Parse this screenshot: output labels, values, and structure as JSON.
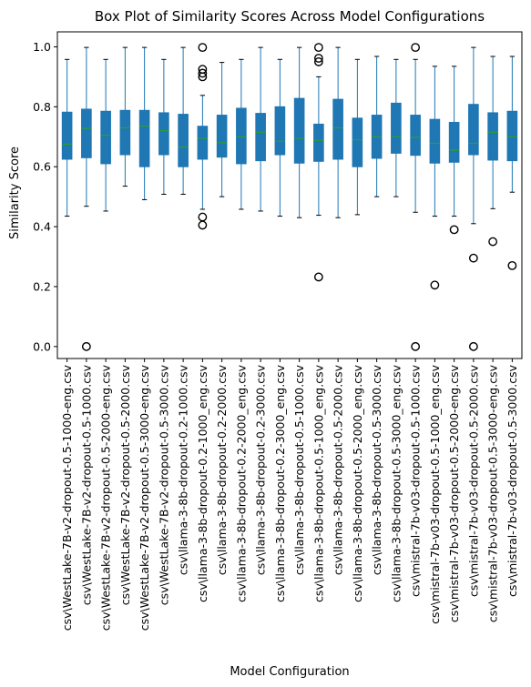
{
  "chart_data": {
    "type": "box",
    "title": "Box Plot of Similarity Scores Across Model Configurations",
    "xlabel": "Model Configuration",
    "ylabel": "Similarity Score",
    "ylim": [
      -0.04,
      1.05
    ],
    "yticks": [
      "0.0",
      "0.2",
      "0.4",
      "0.6",
      "0.8",
      "1.0"
    ],
    "ytick_values": [
      0.0,
      0.2,
      0.4,
      0.6,
      0.8,
      1.0
    ],
    "grid": false,
    "colors": {
      "box": "#1f77b4",
      "median": "#2ca02c",
      "outlier": "#000000"
    },
    "categories": [
      "csv\\WestLake-7B-v2-dropout-0.5-1000-eng.csv",
      "csv\\WestLake-7B-v2-dropout-0.5-1000.csv",
      "csv\\WestLake-7B-v2-dropout-0.5-2000-eng.csv",
      "csv\\WestLake-7B-v2-dropout-0.5-2000.csv",
      "csv\\WestLake-7B-v2-dropout-0.5-3000-eng.csv",
      "csv\\WestLake-7B-v2-dropout-0.5-3000.csv",
      "csv\\llama-3-8b-dropout-0.2-1000.csv",
      "csv\\llama-3-8b-dropout-0.2-1000_eng.csv",
      "csv\\llama-3-8b-dropout-0.2-2000.csv",
      "csv\\llama-3-8b-dropout-0.2-2000_eng.csv",
      "csv\\llama-3-8b-dropout-0.2-3000.csv",
      "csv\\llama-3-8b-dropout-0.2-3000_eng.csv",
      "csv\\llama-3-8b-dropout-0.5-1000.csv",
      "csv\\llama-3-8b-dropout-0.5-1000_eng.csv",
      "csv\\llama-3-8b-dropout-0.5-2000.csv",
      "csv\\llama-3-8b-dropout-0.5-2000_eng.csv",
      "csv\\llama-3-8b-dropout-0.5-3000.csv",
      "csv\\llama-3-8b-dropout-0.5-3000_eng.csv",
      "csv\\mistral-7b-v03-dropout-0.5-1000.csv",
      "csv\\mistral-7b-v03-dropout-0.5-1000_eng.csv",
      "csv\\mistral-7b-v03-dropout-0.5-2000-eng.csv",
      "csv\\mistral-7b-v03-dropout-0.5-2000.csv",
      "csv\\mistral-7b-v03-dropout-0.5-3000-eng.csv",
      "csv\\mistral-7b-v03-dropout-0.5-3000.csv"
    ],
    "boxes": [
      {
        "whislo": 0.435,
        "q1": 0.625,
        "med": 0.675,
        "q3": 0.782,
        "whishi": 0.958,
        "fliers": []
      },
      {
        "whislo": 0.468,
        "q1": 0.63,
        "med": 0.728,
        "q3": 0.792,
        "whishi": 0.998,
        "fliers": [
          0.0
        ]
      },
      {
        "whislo": 0.452,
        "q1": 0.61,
        "med": 0.705,
        "q3": 0.785,
        "whishi": 0.958,
        "fliers": []
      },
      {
        "whislo": 0.535,
        "q1": 0.64,
        "med": 0.73,
        "q3": 0.788,
        "whishi": 0.998,
        "fliers": []
      },
      {
        "whislo": 0.49,
        "q1": 0.6,
        "med": 0.735,
        "q3": 0.788,
        "whishi": 0.998,
        "fliers": []
      },
      {
        "whislo": 0.508,
        "q1": 0.64,
        "med": 0.72,
        "q3": 0.78,
        "whishi": 0.958,
        "fliers": []
      },
      {
        "whislo": 0.508,
        "q1": 0.6,
        "med": 0.665,
        "q3": 0.775,
        "whishi": 0.998,
        "fliers": []
      },
      {
        "whislo": 0.458,
        "q1": 0.625,
        "med": 0.695,
        "q3": 0.735,
        "whishi": 0.838,
        "fliers": [
          0.998,
          0.925,
          0.912,
          0.9,
          0.432,
          0.405
        ]
      },
      {
        "whislo": 0.5,
        "q1": 0.632,
        "med": 0.68,
        "q3": 0.772,
        "whishi": 0.948,
        "fliers": []
      },
      {
        "whislo": 0.458,
        "q1": 0.61,
        "med": 0.7,
        "q3": 0.795,
        "whishi": 0.958,
        "fliers": []
      },
      {
        "whislo": 0.452,
        "q1": 0.62,
        "med": 0.715,
        "q3": 0.778,
        "whishi": 0.998,
        "fliers": []
      },
      {
        "whislo": 0.435,
        "q1": 0.64,
        "med": 0.685,
        "q3": 0.8,
        "whishi": 0.958,
        "fliers": []
      },
      {
        "whislo": 0.43,
        "q1": 0.612,
        "med": 0.695,
        "q3": 0.828,
        "whishi": 0.998,
        "fliers": []
      },
      {
        "whislo": 0.438,
        "q1": 0.618,
        "med": 0.688,
        "q3": 0.742,
        "whishi": 0.9,
        "fliers": [
          0.998,
          0.962,
          0.95,
          0.232
        ]
      },
      {
        "whislo": 0.43,
        "q1": 0.625,
        "med": 0.73,
        "q3": 0.825,
        "whishi": 0.998,
        "fliers": []
      },
      {
        "whislo": 0.44,
        "q1": 0.6,
        "med": 0.69,
        "q3": 0.762,
        "whishi": 0.958,
        "fliers": []
      },
      {
        "whislo": 0.5,
        "q1": 0.628,
        "med": 0.7,
        "q3": 0.772,
        "whishi": 0.968,
        "fliers": []
      },
      {
        "whislo": 0.5,
        "q1": 0.645,
        "med": 0.7,
        "q3": 0.812,
        "whishi": 0.958,
        "fliers": []
      },
      {
        "whislo": 0.448,
        "q1": 0.638,
        "med": 0.698,
        "q3": 0.772,
        "whishi": 0.958,
        "fliers": [
          0.998,
          0.0
        ]
      },
      {
        "whislo": 0.435,
        "q1": 0.612,
        "med": 0.678,
        "q3": 0.758,
        "whishi": 0.935,
        "fliers": [
          0.205
        ]
      },
      {
        "whislo": 0.435,
        "q1": 0.615,
        "med": 0.655,
        "q3": 0.748,
        "whishi": 0.935,
        "fliers": [
          0.39
        ]
      },
      {
        "whislo": 0.41,
        "q1": 0.64,
        "med": 0.678,
        "q3": 0.808,
        "whishi": 0.998,
        "fliers": [
          0.295,
          0.0
        ]
      },
      {
        "whislo": 0.46,
        "q1": 0.622,
        "med": 0.715,
        "q3": 0.78,
        "whishi": 0.968,
        "fliers": [
          0.35
        ]
      },
      {
        "whislo": 0.515,
        "q1": 0.62,
        "med": 0.7,
        "q3": 0.785,
        "whishi": 0.968,
        "fliers": [
          0.27
        ]
      }
    ]
  }
}
